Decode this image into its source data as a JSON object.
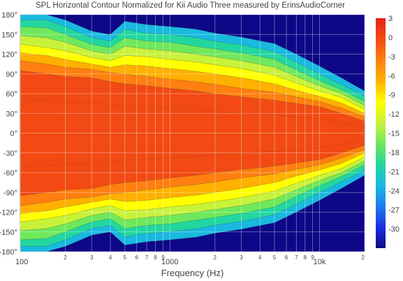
{
  "chart_data": {
    "type": "heatmap",
    "title": "SPL Horizontal Contour Normalized for Kii Audio Three measured by ErinsAudioCorner",
    "xlabel": "Frequency (Hz)",
    "ylabel": "",
    "x_scale": "log",
    "xlim": [
      100,
      20000
    ],
    "ylim": [
      -180,
      180
    ],
    "x_ticks": [
      "100",
      "2",
      "3",
      "4",
      "5",
      "6",
      "7",
      "8",
      "9",
      "1000",
      "2",
      "3",
      "4",
      "5",
      "6",
      "7",
      "8",
      "9",
      "10k",
      "2"
    ],
    "y_ticks": [
      "180°",
      "150°",
      "120°",
      "90°",
      "60°",
      "30°",
      "0°",
      "-30°",
      "-60°",
      "-90°",
      "-120°",
      "-150°",
      "-180°"
    ],
    "colorbar": {
      "ticks": [
        "3",
        "0",
        "-3",
        "-6",
        "-9",
        "-12",
        "-15",
        "-18",
        "-21",
        "-24",
        "-27",
        "-30"
      ],
      "range": [
        -33,
        3
      ],
      "colorscale": [
        "#0d0887",
        "#1a2fe0",
        "#1e7df0",
        "#19b9e0",
        "#22d6a0",
        "#6fe85c",
        "#c8f23a",
        "#ffff00",
        "#ffb000",
        "#ff7f10",
        "#f24a12",
        "#e8201c"
      ]
    },
    "x": [
      100,
      150,
      200,
      300,
      400,
      500,
      700,
      1000,
      1500,
      2000,
      3000,
      5000,
      7000,
      10000,
      14000,
      20000
    ],
    "series": [
      {
        "level": "-3",
        "half_width_deg": [
          95,
          90,
          86,
          84,
          78,
          75,
          72,
          68,
          64,
          60,
          55,
          50,
          45,
          40,
          30,
          18
        ]
      },
      {
        "level": "-6",
        "half_width_deg": [
          110,
          105,
          100,
          97,
          92,
          90,
          86,
          82,
          78,
          74,
          68,
          62,
          55,
          48,
          38,
          25
        ]
      },
      {
        "level": "-9",
        "half_width_deg": [
          122,
          118,
          112,
          105,
          100,
          104,
          102,
          98,
          94,
          90,
          84,
          75,
          65,
          56,
          46,
          30
        ]
      },
      {
        "level": "-12",
        "half_width_deg": [
          135,
          130,
          125,
          115,
          110,
          118,
          116,
          112,
          108,
          104,
          98,
          88,
          76,
          64,
          54,
          36
        ]
      },
      {
        "level": "-15",
        "half_width_deg": [
          148,
          145,
          138,
          125,
          120,
          132,
          128,
          125,
          120,
          116,
          110,
          100,
          86,
          72,
          60,
          42
        ]
      },
      {
        "level": "-18",
        "half_width_deg": [
          162,
          160,
          150,
          135,
          130,
          145,
          140,
          138,
          132,
          128,
          122,
          112,
          96,
          80,
          66,
          48
        ]
      },
      {
        "level": "-21",
        "half_width_deg": [
          172,
          172,
          162,
          145,
          140,
          158,
          152,
          150,
          145,
          140,
          134,
          124,
          108,
          90,
          74,
          56
        ]
      },
      {
        "level": "-24",
        "half_width_deg": [
          180,
          180,
          172,
          155,
          150,
          170,
          165,
          162,
          158,
          152,
          146,
          136,
          120,
          102,
          84,
          64
        ]
      }
    ]
  }
}
